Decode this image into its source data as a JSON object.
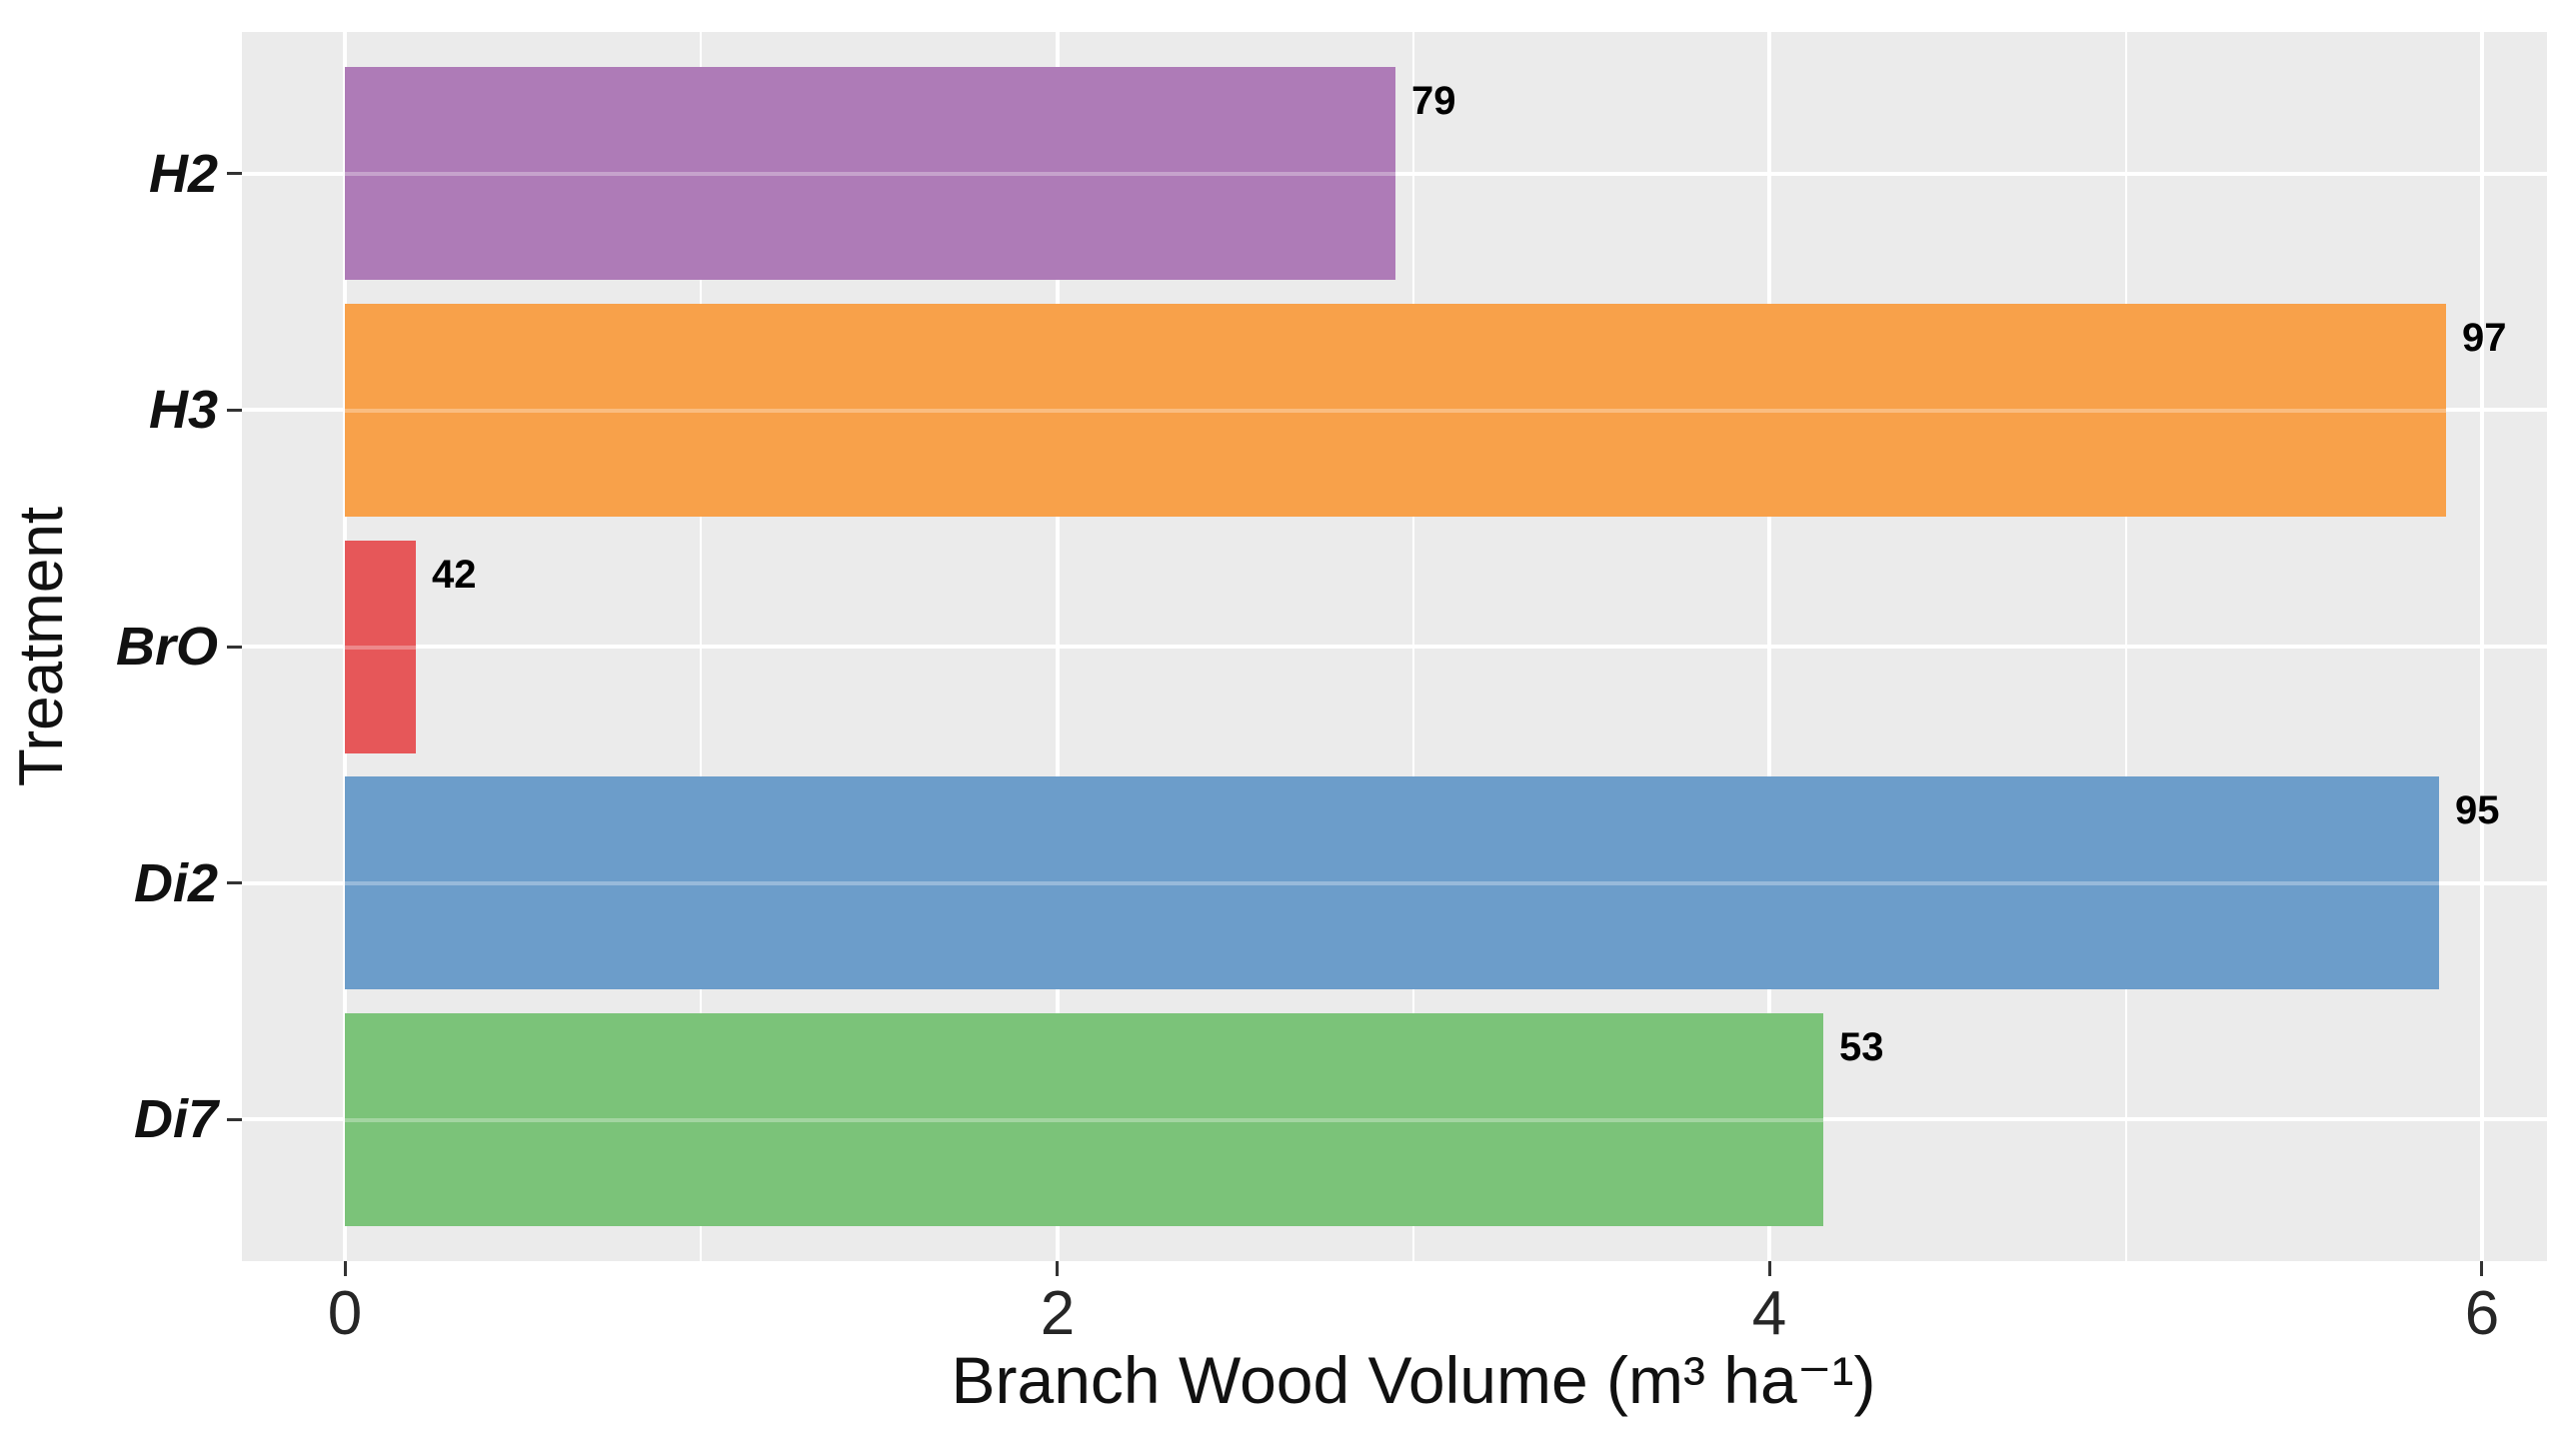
{
  "chart_data": {
    "type": "bar",
    "orientation": "horizontal",
    "title": "",
    "xlabel": "Branch Wood Volume (m³ ha⁻¹)",
    "ylabel": "Treatment",
    "categories": [
      "H2",
      "H3",
      "BrO",
      "Di2",
      "Di7"
    ],
    "values": [
      2.95,
      5.9,
      0.2,
      5.88,
      4.15
    ],
    "bar_labels": [
      "79",
      "97",
      "42",
      "95",
      "53"
    ],
    "bar_colors": [
      "#AE7BB7",
      "#F8A14A",
      "#E65759",
      "#6C9DCA",
      "#7BC379"
    ],
    "xlim": [
      0,
      6
    ],
    "x_ticks": [
      0,
      2,
      4,
      6
    ],
    "x_tick_labels": [
      "0",
      "2",
      "4",
      "6"
    ],
    "x_minor_ticks": [
      1,
      3,
      5
    ],
    "grid": true,
    "legend": "none",
    "panel_background": "#EBEBEB",
    "gridline_color": "#FFFFFF",
    "tick_color": "#333333",
    "text_color": "#111111"
  }
}
